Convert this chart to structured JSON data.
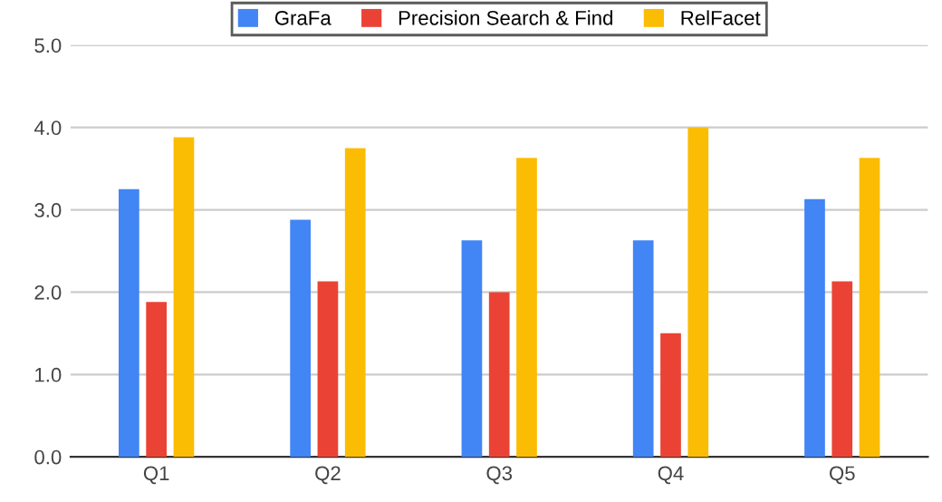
{
  "chart_data": {
    "type": "bar",
    "categories": [
      "Q1",
      "Q2",
      "Q3",
      "Q4",
      "Q5"
    ],
    "series": [
      {
        "name": "GraFa",
        "color": "#4285f4",
        "values": [
          3.25,
          2.88,
          2.63,
          2.63,
          3.13
        ]
      },
      {
        "name": "Precision Search & Find",
        "color": "#ea4335",
        "values": [
          1.88,
          2.13,
          2.0,
          1.5,
          2.13
        ]
      },
      {
        "name": "RelFacet",
        "color": "#fbbc04",
        "values": [
          3.88,
          3.75,
          3.63,
          4.0,
          3.63
        ]
      }
    ],
    "ylim": [
      0,
      5
    ],
    "yticks": [
      {
        "value": 0,
        "label": "0.0"
      },
      {
        "value": 1,
        "label": "1.0"
      },
      {
        "value": 2,
        "label": "2.0"
      },
      {
        "value": 3,
        "label": "3.0"
      },
      {
        "value": 4,
        "label": "4.0"
      },
      {
        "value": 5,
        "label": "5.0"
      }
    ],
    "grid": "y",
    "legend": "top"
  }
}
